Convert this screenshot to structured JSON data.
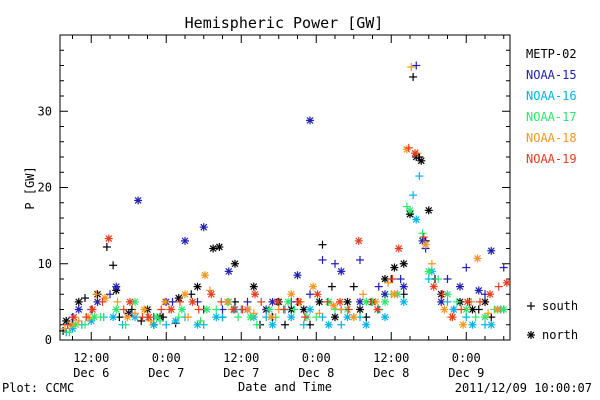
{
  "chart_data": {
    "type": "scatter",
    "title": "Hemispheric Power [GW]",
    "xlabel": "Date and Time",
    "ylabel": "P [GW]",
    "footer_left": "Plot: CCMC",
    "footer_right": "2011/12/09 10:00:07",
    "x_unit": "hours since Dec 6 00:00",
    "xlim": [
      7,
      79
    ],
    "ylim": [
      0,
      40
    ],
    "yticks": [
      0,
      10,
      20,
      30
    ],
    "xticks": [
      {
        "x": 12,
        "l1": "12:00",
        "l2": "Dec 6"
      },
      {
        "x": 24,
        "l1": "0:00",
        "l2": "Dec 7"
      },
      {
        "x": 36,
        "l1": "12:00",
        "l2": "Dec 7"
      },
      {
        "x": 48,
        "l1": "0:00",
        "l2": "Dec 8"
      },
      {
        "x": 60,
        "l1": "12:00",
        "l2": "Dec 8"
      },
      {
        "x": 72,
        "l1": "0:00",
        "l2": "Dec 9"
      }
    ],
    "marker_legend": [
      {
        "marker": "+",
        "label": "south"
      },
      {
        "marker": "*",
        "label": "north"
      }
    ],
    "series": [
      {
        "name": "METP-02",
        "color": "#000000",
        "south": [
          [
            7.5,
            1.2
          ],
          [
            9,
            2
          ],
          [
            11,
            5.5
          ],
          [
            14.5,
            12.2
          ],
          [
            15.5,
            9.8
          ],
          [
            16.5,
            3
          ],
          [
            18.5,
            4
          ],
          [
            20,
            2.5
          ],
          [
            22,
            2
          ],
          [
            23.5,
            3
          ],
          [
            25.5,
            2.2
          ],
          [
            28,
            6
          ],
          [
            30,
            4
          ],
          [
            33,
            3
          ],
          [
            35,
            5
          ],
          [
            37,
            4
          ],
          [
            39,
            2
          ],
          [
            41,
            3
          ],
          [
            43,
            2
          ],
          [
            45,
            5
          ],
          [
            47,
            2
          ],
          [
            49,
            12.5
          ],
          [
            50.5,
            7
          ],
          [
            52,
            4
          ],
          [
            54,
            7
          ],
          [
            56,
            3
          ],
          [
            58,
            4
          ],
          [
            60,
            8
          ],
          [
            62,
            6
          ],
          [
            63.5,
            34.5
          ],
          [
            64.5,
            24
          ],
          [
            65.5,
            13
          ],
          [
            67,
            8
          ],
          [
            70,
            4
          ],
          [
            72.5,
            5
          ],
          [
            74,
            4
          ],
          [
            76,
            3
          ],
          [
            78,
            4
          ]
        ],
        "north": [
          [
            8,
            2.5
          ],
          [
            10,
            5
          ],
          [
            13,
            6
          ],
          [
            16,
            6.5
          ],
          [
            18,
            3.5
          ],
          [
            21,
            4
          ],
          [
            23,
            3
          ],
          [
            26,
            5.5
          ],
          [
            29,
            7
          ],
          [
            31.5,
            12
          ],
          [
            32.5,
            12.2
          ],
          [
            35,
            10
          ],
          [
            38,
            7
          ],
          [
            40,
            4
          ],
          [
            42,
            5
          ],
          [
            44,
            4
          ],
          [
            46,
            4
          ],
          [
            48.5,
            5
          ],
          [
            51,
            3
          ],
          [
            53,
            5
          ],
          [
            55,
            4
          ],
          [
            57,
            5
          ],
          [
            59,
            8
          ],
          [
            60.5,
            9.5
          ],
          [
            62,
            10
          ],
          [
            63,
            16.5
          ],
          [
            64,
            24
          ],
          [
            64.8,
            23.5
          ],
          [
            66,
            17
          ],
          [
            68,
            6
          ],
          [
            71,
            5
          ],
          [
            73,
            4
          ],
          [
            75,
            5
          ],
          [
            77,
            4
          ]
        ]
      },
      {
        "name": "NOAA-15",
        "color": "#1f1fb4",
        "south": [
          [
            9,
            3
          ],
          [
            12,
            4
          ],
          [
            15,
            6
          ],
          [
            18.5,
            3.5
          ],
          [
            22,
            3
          ],
          [
            25,
            5
          ],
          [
            29,
            5
          ],
          [
            33,
            4
          ],
          [
            37,
            5
          ],
          [
            40,
            4
          ],
          [
            44,
            5
          ],
          [
            47,
            6
          ],
          [
            49,
            10.5
          ],
          [
            51,
            10
          ],
          [
            55,
            10.5
          ],
          [
            58,
            7
          ],
          [
            61.5,
            8
          ],
          [
            64,
            36
          ],
          [
            65.5,
            12
          ],
          [
            69,
            8
          ],
          [
            72,
            9.5
          ],
          [
            75,
            6
          ],
          [
            78,
            9.5
          ]
        ],
        "north": [
          [
            10,
            4
          ],
          [
            13,
            5
          ],
          [
            16,
            7
          ],
          [
            19.5,
            18.3
          ],
          [
            24,
            5
          ],
          [
            27,
            13
          ],
          [
            30,
            14.8
          ],
          [
            34,
            9
          ],
          [
            37,
            4
          ],
          [
            41,
            5
          ],
          [
            45,
            8.5
          ],
          [
            47,
            28.8
          ],
          [
            52,
            9
          ],
          [
            55,
            5
          ],
          [
            59,
            6
          ],
          [
            62,
            7
          ],
          [
            65,
            13
          ],
          [
            68,
            5
          ],
          [
            71,
            7
          ],
          [
            74,
            6.5
          ],
          [
            76,
            11.7
          ]
        ]
      },
      {
        "name": "NOAA-16",
        "color": "#00b4e6",
        "south": [
          [
            8,
            1
          ],
          [
            10.5,
            2
          ],
          [
            14,
            3
          ],
          [
            17,
            2
          ],
          [
            21,
            3
          ],
          [
            24,
            2
          ],
          [
            27,
            3
          ],
          [
            30,
            2
          ],
          [
            33,
            3
          ],
          [
            36,
            4
          ],
          [
            40,
            3
          ],
          [
            43,
            4
          ],
          [
            46,
            2
          ],
          [
            49,
            3
          ],
          [
            52,
            2
          ],
          [
            55,
            3
          ],
          [
            58,
            4
          ],
          [
            61,
            6
          ],
          [
            63.5,
            19
          ],
          [
            64.5,
            21.5
          ],
          [
            66,
            8
          ],
          [
            69,
            5
          ],
          [
            72,
            3
          ],
          [
            75,
            2
          ],
          [
            77.5,
            4
          ]
        ],
        "north": [
          [
            9,
            1.5
          ],
          [
            12,
            2.5
          ],
          [
            15.5,
            3
          ],
          [
            19,
            3
          ],
          [
            22,
            2
          ],
          [
            25.5,
            2.5
          ],
          [
            29,
            2
          ],
          [
            32,
            3
          ],
          [
            35,
            4
          ],
          [
            38,
            3
          ],
          [
            41,
            2
          ],
          [
            44,
            3
          ],
          [
            47,
            4
          ],
          [
            50,
            2
          ],
          [
            53,
            3
          ],
          [
            56,
            2
          ],
          [
            59,
            3
          ],
          [
            62,
            5
          ],
          [
            64,
            15.8
          ],
          [
            66.5,
            9
          ],
          [
            70,
            4
          ],
          [
            73,
            2
          ],
          [
            76,
            2
          ]
        ]
      },
      {
        "name": "NOAA-17",
        "color": "#2ee66e",
        "south": [
          [
            8.5,
            1
          ],
          [
            11,
            2
          ],
          [
            13.5,
            3
          ],
          [
            17.5,
            2
          ],
          [
            20.5,
            4
          ],
          [
            23,
            2.5
          ],
          [
            26,
            3
          ],
          [
            29.5,
            2.5
          ],
          [
            32,
            4
          ],
          [
            35.5,
            3
          ],
          [
            38.5,
            2
          ],
          [
            41.5,
            3
          ],
          [
            44.5,
            4
          ],
          [
            48,
            3
          ],
          [
            51,
            4
          ],
          [
            54,
            3
          ],
          [
            57,
            5
          ],
          [
            60,
            6
          ],
          [
            62.5,
            17.5
          ],
          [
            65,
            14
          ],
          [
            67.5,
            8
          ],
          [
            70.5,
            5
          ],
          [
            73.5,
            3
          ],
          [
            76.5,
            4
          ]
        ],
        "north": [
          [
            9.5,
            2
          ],
          [
            12.5,
            3
          ],
          [
            16,
            4
          ],
          [
            19,
            5
          ],
          [
            22.5,
            3
          ],
          [
            26.5,
            4
          ],
          [
            30.5,
            4
          ],
          [
            34,
            5
          ],
          [
            37.5,
            3
          ],
          [
            40.5,
            4
          ],
          [
            43.5,
            5
          ],
          [
            46.5,
            3
          ],
          [
            50,
            5
          ],
          [
            53,
            4
          ],
          [
            56,
            5
          ],
          [
            59,
            5
          ],
          [
            61,
            6
          ],
          [
            63,
            17
          ],
          [
            66,
            9
          ],
          [
            69,
            6
          ],
          [
            72,
            4
          ],
          [
            75,
            3
          ],
          [
            78,
            4
          ]
        ]
      },
      {
        "name": "NOAA-18",
        "color": "#f5961e",
        "south": [
          [
            7.8,
            1.5
          ],
          [
            10,
            2.5
          ],
          [
            12.8,
            6
          ],
          [
            16.2,
            5
          ],
          [
            19,
            3.5
          ],
          [
            21.5,
            2.5
          ],
          [
            24.5,
            4
          ],
          [
            27.5,
            3
          ],
          [
            31,
            6.5
          ],
          [
            34.5,
            4
          ],
          [
            38,
            3.5
          ],
          [
            42,
            4
          ],
          [
            45.5,
            5
          ],
          [
            48.5,
            3.5
          ],
          [
            52,
            4
          ],
          [
            55.5,
            6
          ],
          [
            59.5,
            7.5
          ],
          [
            63.2,
            35.8
          ],
          [
            64.2,
            24.5
          ],
          [
            66.5,
            10
          ],
          [
            69.5,
            3
          ],
          [
            72.8,
            5
          ],
          [
            75.5,
            3.5
          ]
        ],
        "north": [
          [
            8.8,
            2
          ],
          [
            11.5,
            3
          ],
          [
            14.2,
            5.5
          ],
          [
            17.8,
            3
          ],
          [
            20.5,
            4
          ],
          [
            23.8,
            5
          ],
          [
            27,
            6
          ],
          [
            30.2,
            8.5
          ],
          [
            33.8,
            5
          ],
          [
            37,
            4
          ],
          [
            40.8,
            3
          ],
          [
            44,
            6
          ],
          [
            47.5,
            7
          ],
          [
            50.8,
            4.5
          ],
          [
            54,
            3
          ],
          [
            57.5,
            5
          ],
          [
            60.5,
            6
          ],
          [
            62.5,
            25
          ],
          [
            65.5,
            12.5
          ],
          [
            68.5,
            4
          ],
          [
            71.5,
            2
          ],
          [
            73.8,
            10.7
          ],
          [
            77,
            4
          ]
        ]
      },
      {
        "name": "NOAA-19",
        "color": "#e63c1e",
        "south": [
          [
            8.2,
            2
          ],
          [
            11.2,
            3
          ],
          [
            13.8,
            5
          ],
          [
            17.2,
            4
          ],
          [
            20.2,
            3
          ],
          [
            23.2,
            4
          ],
          [
            26.2,
            5
          ],
          [
            29.2,
            4
          ],
          [
            32.8,
            5
          ],
          [
            36.2,
            4
          ],
          [
            39.2,
            5
          ],
          [
            42.8,
            4
          ],
          [
            46.2,
            3
          ],
          [
            49.8,
            5
          ],
          [
            53.2,
            4
          ],
          [
            56.8,
            5
          ],
          [
            60.2,
            8
          ],
          [
            62.8,
            25.2
          ],
          [
            65.2,
            13.5
          ],
          [
            68.2,
            6
          ],
          [
            71.2,
            4
          ],
          [
            74.2,
            5
          ],
          [
            77.2,
            7
          ]
        ],
        "north": [
          [
            9.2,
            3
          ],
          [
            12.2,
            4
          ],
          [
            14.8,
            13.3
          ],
          [
            18.2,
            5
          ],
          [
            21.2,
            3
          ],
          [
            24.8,
            4
          ],
          [
            28.2,
            5
          ],
          [
            31.2,
            6
          ],
          [
            34.8,
            4
          ],
          [
            38.2,
            6
          ],
          [
            41.8,
            5
          ],
          [
            45.2,
            5
          ],
          [
            48.2,
            6
          ],
          [
            51.8,
            5
          ],
          [
            54.8,
            13
          ],
          [
            57.8,
            4
          ],
          [
            61.2,
            12
          ],
          [
            63.8,
            24.5
          ],
          [
            66.8,
            7
          ],
          [
            69.8,
            3
          ],
          [
            72.2,
            5
          ],
          [
            75.8,
            6
          ],
          [
            78.5,
            7.5
          ]
        ]
      }
    ]
  }
}
